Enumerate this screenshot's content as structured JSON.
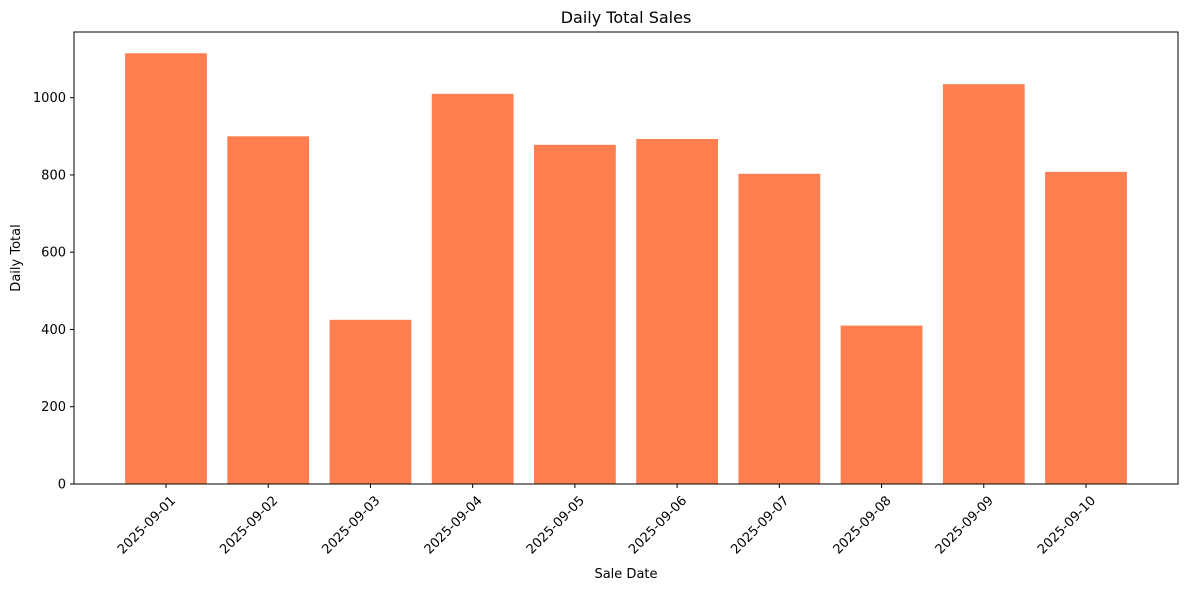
{
  "chart_data": {
    "type": "bar",
    "title": "Daily Total Sales",
    "xlabel": "Sale Date",
    "ylabel": "Daily Total",
    "categories": [
      "2025-09-01",
      "2025-09-02",
      "2025-09-03",
      "2025-09-04",
      "2025-09-05",
      "2025-09-06",
      "2025-09-07",
      "2025-09-08",
      "2025-09-09",
      "2025-09-10"
    ],
    "values": [
      1115,
      900,
      425,
      1010,
      878,
      893,
      803,
      410,
      1035,
      808
    ],
    "ylim": [
      0,
      1170
    ],
    "yticks": [
      0,
      200,
      400,
      600,
      800,
      1000
    ],
    "ytick_labels": [
      "0",
      "200",
      "400",
      "600",
      "800",
      "1000"
    ],
    "bar_color": "#ff7f50",
    "grid": false,
    "legend": "none"
  }
}
